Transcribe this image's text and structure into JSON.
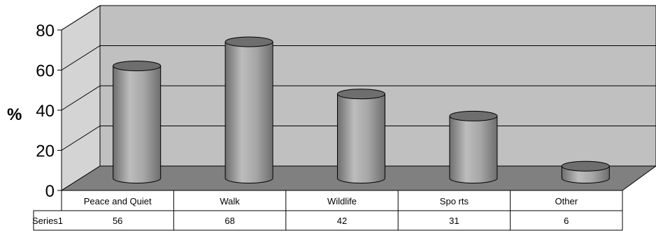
{
  "chart_data": {
    "type": "bar",
    "style": "3d-cylinder",
    "categories": [
      "Peace and Quiet",
      "Walk",
      "Wildlife",
      "Sports",
      "Other"
    ],
    "category_display": [
      "Peace and Quiet",
      "Walk",
      "Wildlife",
      "Spo rts",
      "Other"
    ],
    "series": [
      {
        "name": "Series1",
        "values": [
          56,
          68,
          42,
          31,
          6
        ]
      }
    ],
    "ylabel": "%",
    "ylim": [
      0,
      80
    ],
    "yticks": [
      "0",
      "20",
      "40",
      "60",
      "80"
    ],
    "grid": true,
    "legend": "none",
    "data_table": true,
    "colors": {
      "back_wall": "#c0c0c0",
      "side_wall": "#d4d4d4",
      "floor": "#808080",
      "cylinder_dark": "#6e6e6e",
      "cylinder_mid": "#a6a6a6",
      "cylinder_light": "#bdbdbd",
      "outline": "#000000"
    }
  }
}
